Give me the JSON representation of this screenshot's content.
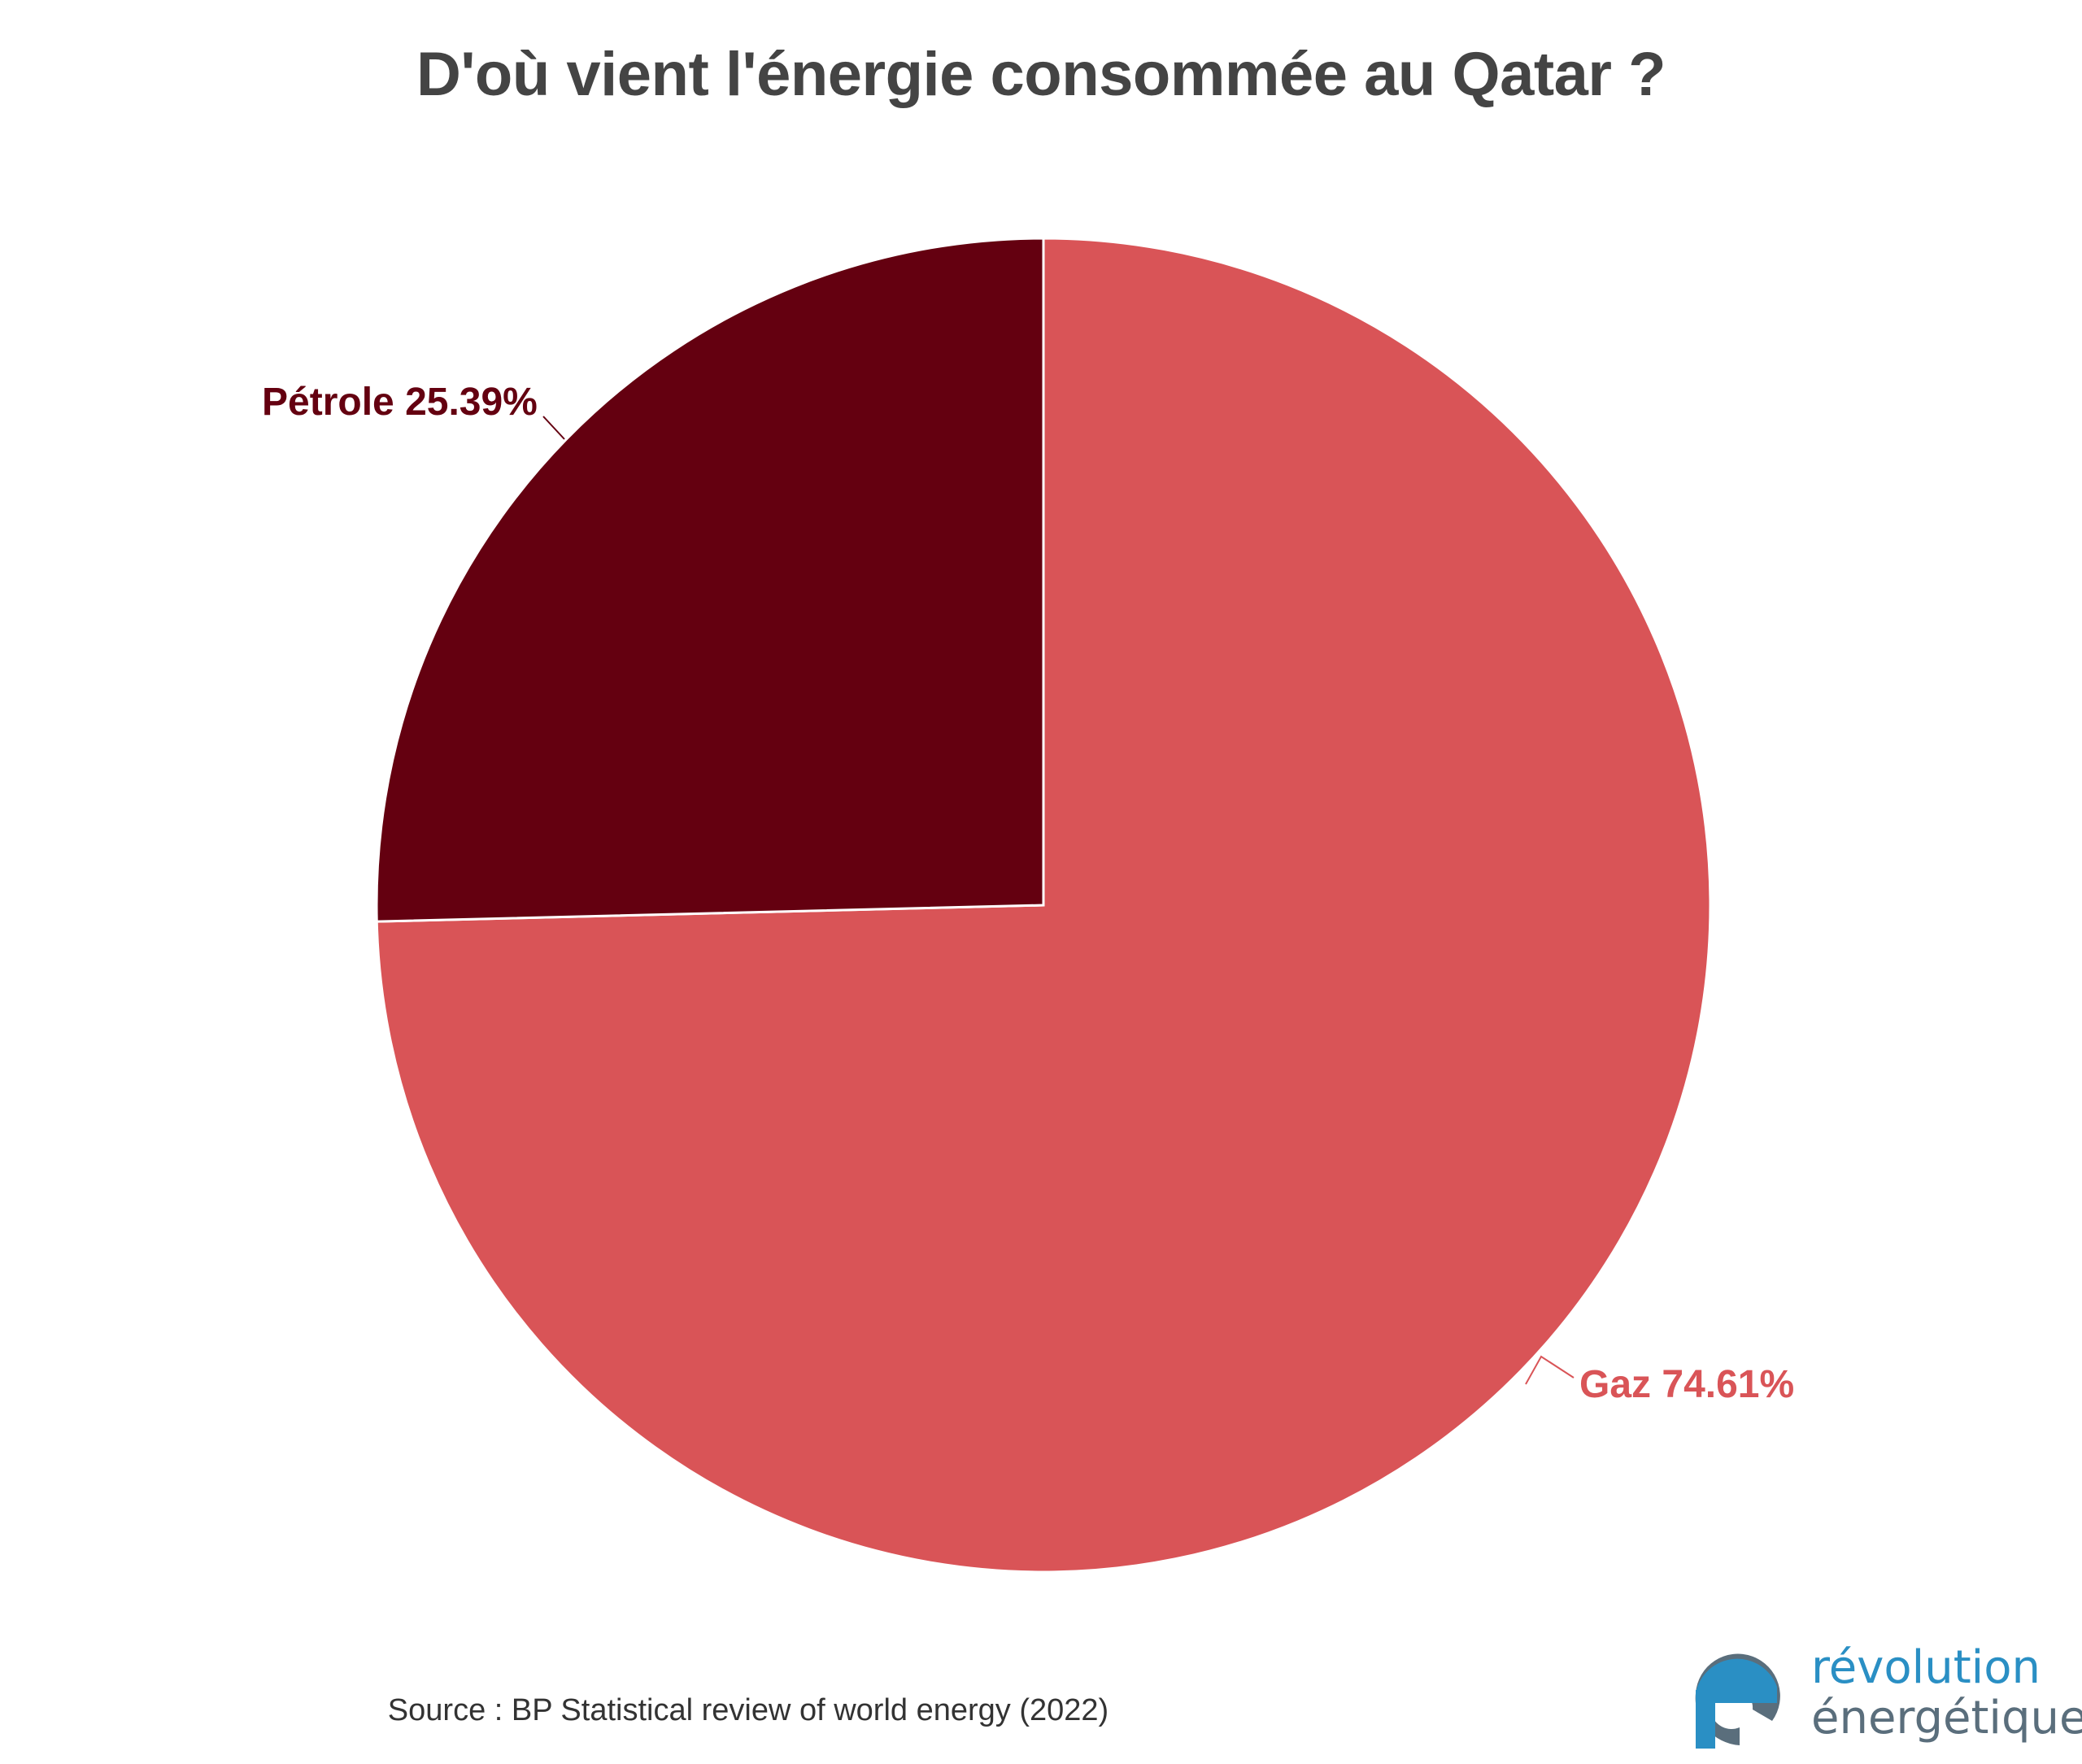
{
  "chart_data": {
    "type": "pie",
    "title": "D'où vient l'énergie consommée au Qatar ?",
    "slices": [
      {
        "label": "Gaz",
        "value": 74.61,
        "display": "Gaz 74.61%",
        "color": "#d95457"
      },
      {
        "label": "Pétrole",
        "value": 25.39,
        "display": "Pétrole 25.39%",
        "color": "#640010"
      }
    ],
    "legend": "none",
    "source": "Source : BP Statistical review of world energy (2022)"
  },
  "logo": {
    "line1": "révolution",
    "line2": "énergétique",
    "colors": {
      "primary": "#2a8fc4",
      "secondary": "#5a6e7c"
    }
  }
}
